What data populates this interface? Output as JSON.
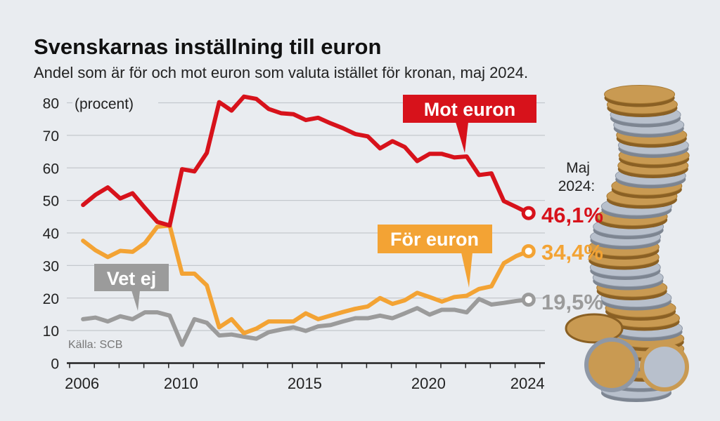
{
  "chart_data": {
    "type": "line",
    "title": "Svenskarnas inställning till euron",
    "subtitle": "Andel som är för och mot euron som valuta istället för kronan, maj 2024.",
    "ylabel": "(procent)",
    "xlabel": "",
    "ylim": [
      0,
      80
    ],
    "yticks": [
      "0",
      "10",
      "20",
      "30",
      "40",
      "50",
      "60",
      "70",
      "80"
    ],
    "xticks": [
      "2006",
      "2010",
      "2015",
      "2020",
      "2024"
    ],
    "grid": true,
    "source": "Källa: SCB",
    "end_label_heading": [
      "Maj",
      "2024:"
    ],
    "x": [
      "2006-05",
      "2006-11",
      "2007-05",
      "2007-11",
      "2008-05",
      "2008-11",
      "2009-05",
      "2009-11",
      "2010-05",
      "2010-11",
      "2011-05",
      "2011-11",
      "2012-05",
      "2012-11",
      "2013-05",
      "2013-11",
      "2014-05",
      "2014-11",
      "2015-05",
      "2015-11",
      "2016-05",
      "2016-11",
      "2017-05",
      "2017-11",
      "2018-05",
      "2018-11",
      "2019-05",
      "2019-11",
      "2020-05",
      "2020-11",
      "2021-05",
      "2021-11",
      "2022-05",
      "2022-11",
      "2023-05",
      "2023-11",
      "2024-05"
    ],
    "series": [
      {
        "name": "Mot euron",
        "color": "#d7121b",
        "end_label": "46,1%",
        "values": [
          48.6,
          51.7,
          54.0,
          50.6,
          52.2,
          47.7,
          43.4,
          42.3,
          59.6,
          58.9,
          64.6,
          80.2,
          77.6,
          81.9,
          81.2,
          78.1,
          76.8,
          76.5,
          74.7,
          75.4,
          73.7,
          72.2,
          70.4,
          69.7,
          66.0,
          68.2,
          66.4,
          62.1,
          64.3,
          64.3,
          63.2,
          63.5,
          57.8,
          58.3,
          49.8,
          48.0,
          46.1
        ]
      },
      {
        "name": "För euron",
        "color": "#f3a334",
        "end_label": "34,4%",
        "values": [
          37.6,
          34.7,
          32.6,
          34.5,
          34.2,
          36.9,
          41.9,
          42.3,
          27.5,
          27.5,
          23.9,
          11.0,
          13.5,
          9.2,
          10.6,
          12.8,
          12.8,
          12.8,
          15.3,
          13.5,
          14.6,
          15.7,
          16.7,
          17.4,
          20.0,
          18.2,
          19.3,
          21.6,
          20.3,
          18.9,
          20.3,
          20.7,
          22.8,
          23.6,
          30.7,
          32.9,
          34.4
        ]
      },
      {
        "name": "Vet ej",
        "color": "#9b9b9b",
        "end_label": "19,5%",
        "values": [
          13.5,
          14.0,
          12.8,
          14.4,
          13.5,
          15.6,
          15.6,
          14.6,
          5.6,
          13.5,
          12.4,
          8.5,
          8.8,
          8.1,
          7.5,
          9.5,
          10.3,
          11.0,
          9.9,
          11.3,
          11.7,
          12.8,
          13.8,
          13.8,
          14.6,
          13.8,
          15.3,
          16.9,
          14.9,
          16.4,
          16.4,
          15.6,
          19.7,
          18.0,
          18.5,
          19.1,
          19.5
        ]
      }
    ]
  },
  "colors": {
    "background": "#e9ecf0",
    "grid": "#c4c8cd",
    "axis": "#222222"
  }
}
